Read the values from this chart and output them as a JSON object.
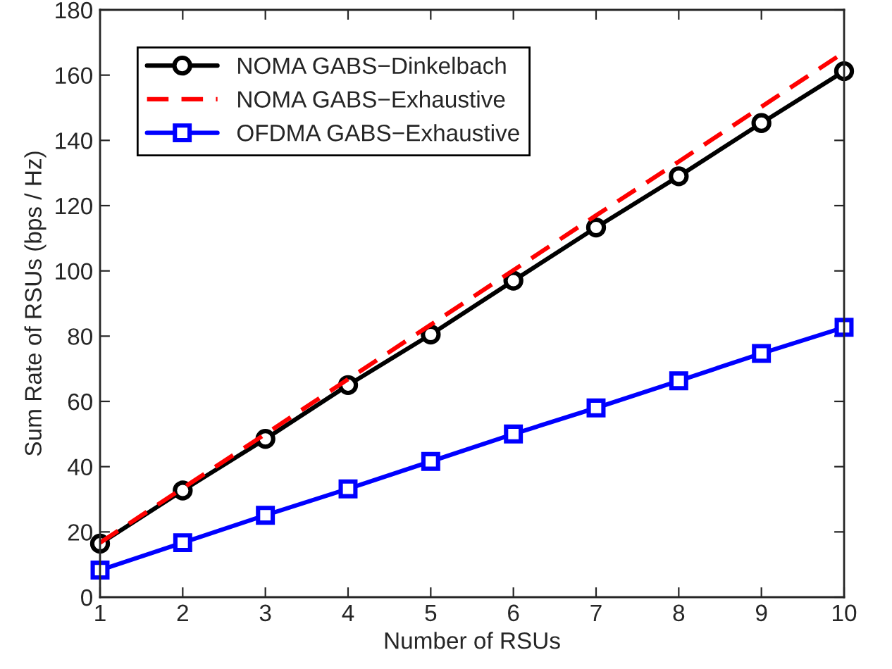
{
  "chart_data": {
    "type": "line",
    "xlabel": "Number of RSUs",
    "ylabel": "Sum Rate of RSUs (bps / Hz)",
    "x": [
      1,
      2,
      3,
      4,
      5,
      6,
      7,
      8,
      9,
      10
    ],
    "series": [
      {
        "name": "NOMA GABS−Dinkelbach",
        "color": "#000000",
        "marker": "circle",
        "line_style": "solid",
        "values": [
          16.4,
          32.7,
          48.5,
          65,
          80.5,
          97,
          113.3,
          129,
          145.3,
          161.2
        ]
      },
      {
        "name": "NOMA GABS−Exhaustive",
        "color": "#ff0000",
        "marker": "none",
        "line_style": "dashed",
        "values": [
          16.7,
          33.4,
          50,
          66.8,
          83.5,
          100.2,
          117,
          133.5,
          150.3,
          167
        ]
      },
      {
        "name": "OFDMA GABS−Exhaustive",
        "color": "#0000ff",
        "marker": "square",
        "line_style": "solid",
        "values": [
          8.3,
          16.7,
          25.1,
          33.2,
          41.6,
          50,
          58,
          66.3,
          74.7,
          82.7
        ]
      }
    ],
    "xlim": [
      1,
      10
    ],
    "xticks": [
      1,
      2,
      3,
      4,
      5,
      6,
      7,
      8,
      9,
      10
    ],
    "ylim": [
      0,
      180
    ],
    "yticks": [
      0,
      20,
      40,
      60,
      80,
      100,
      120,
      140,
      160,
      180
    ],
    "grid": false,
    "legend": "top left"
  }
}
